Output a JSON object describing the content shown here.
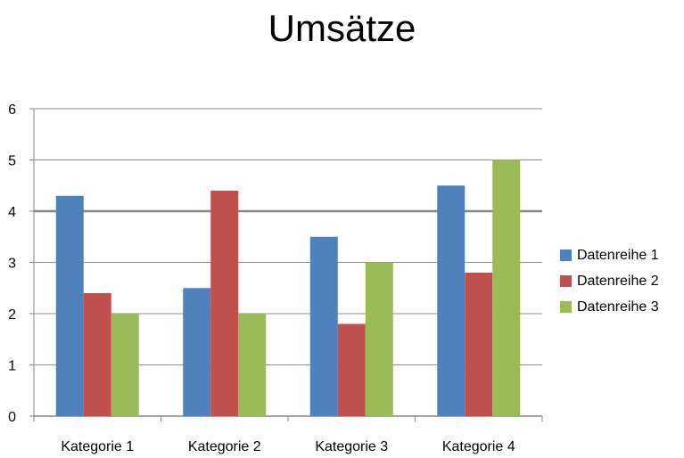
{
  "chart_data": {
    "type": "bar",
    "title": "Umsätze",
    "categories": [
      "Kategorie 1",
      "Kategorie 2",
      "Kategorie 3",
      "Kategorie 4"
    ],
    "series": [
      {
        "name": "Datenreihe 1",
        "values": [
          4.3,
          2.5,
          3.5,
          4.5
        ],
        "color": "#4f81bd"
      },
      {
        "name": "Datenreihe 2",
        "values": [
          2.4,
          4.4,
          1.8,
          2.8
        ],
        "color": "#c0504d"
      },
      {
        "name": "Datenreihe 3",
        "values": [
          2.0,
          2.0,
          3.0,
          5.0
        ],
        "color": "#9bbb59"
      }
    ],
    "ylim": [
      0,
      6
    ],
    "yticks": [
      "0",
      "1",
      "2",
      "3",
      "4",
      "5",
      "6"
    ],
    "grid": true,
    "legend": "right"
  }
}
